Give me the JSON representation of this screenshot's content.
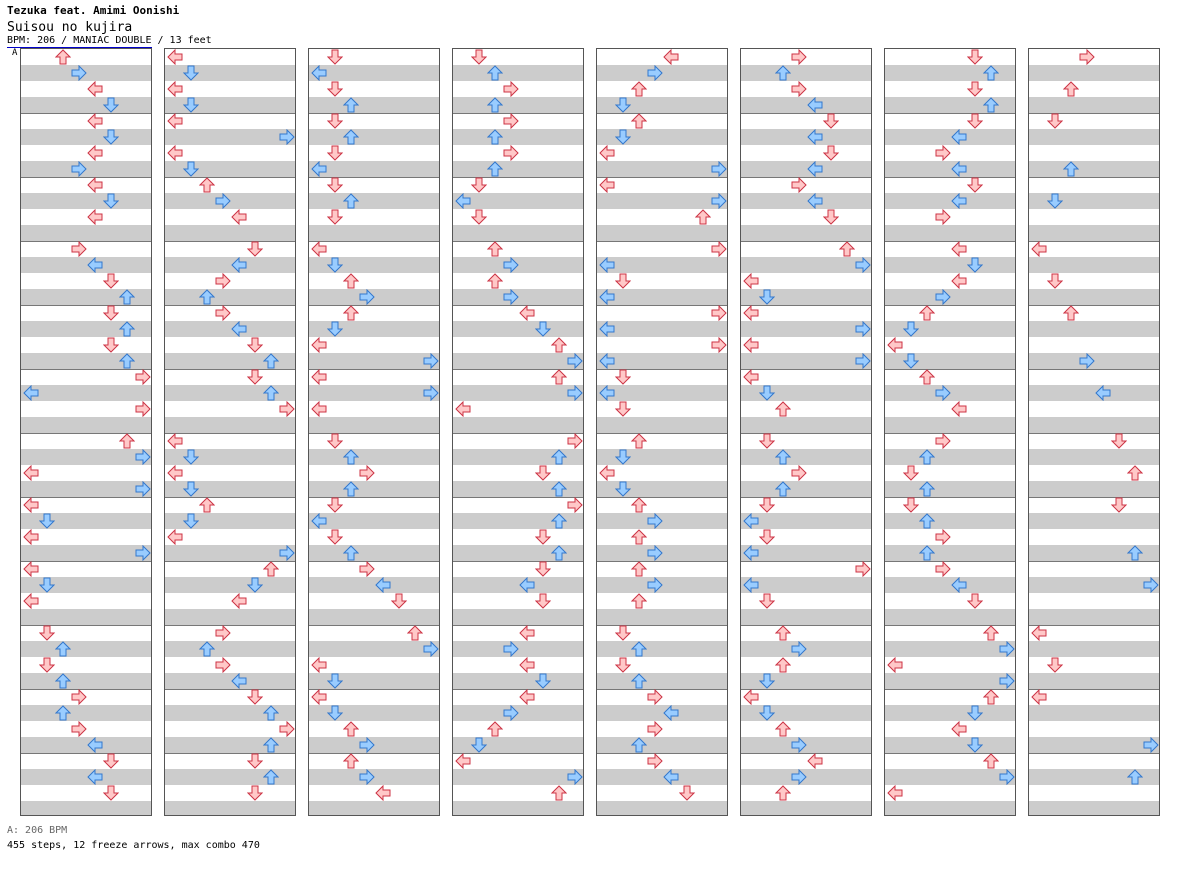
{
  "header": {
    "artist": "Tezuka feat. Amimi Oonishi",
    "title": "Suisou no kujira",
    "chart_info": "BPM: 206 / MANIAC DOUBLE / 13 feet",
    "section_marker": "A"
  },
  "footer": {
    "bpm_line": "A: 206 BPM",
    "stats_line": "455 steps, 12 freeze arrows, max combo 470"
  },
  "colors": {
    "red_fill": "#ffc8c8",
    "red_stroke": "#cc3344",
    "blue_fill": "#99ccff",
    "blue_stroke": "#3377cc",
    "freeze_fill": "#c8ffc8",
    "freeze_stroke": "#339933",
    "stripe_gray": "#cccccc"
  },
  "notes": [
    [
      "A",
      1,
      13.5,
      "red"
    ],
    [
      "A",
      1,
      14,
      "blue"
    ],
    [
      "A",
      2,
      13.5,
      "red"
    ],
    [
      "A",
      2,
      14,
      "red"
    ],
    [
      "A",
      3,
      14.5,
      "red"
    ],
    [
      "A",
      4,
      15,
      "red"
    ],
    [
      "A",
      2,
      15.5,
      "blue"
    ],
    [
      "A",
      2,
      16,
      "blue"
    ],
    [
      "A",
      3,
      16.5,
      "red"
    ],
    [
      "A",
      3,
      17,
      "red"
    ],
    [
      "A",
      2,
      17,
      "red"
    ],
    [
      "A",
      3,
      17.5,
      "blue"
    ],
    [
      "A",
      4,
      17.5,
      "blue"
    ],
    [
      "A",
      4,
      18,
      "blue"
    ],
    [
      "A",
      2,
      18.5,
      "red"
    ],
    [
      "A",
      3,
      18.5,
      "blue"
    ],
    [
      "A",
      1,
      19,
      "red"
    ],
    [
      "A",
      2,
      19,
      "blue"
    ],
    [
      "A",
      1,
      19.5,
      "red"
    ],
    [
      "A",
      0,
      20,
      "red"
    ],
    [
      "A",
      1,
      20.5,
      "red"
    ],
    [
      "A",
      0,
      20.5,
      "blue"
    ],
    [
      "A",
      1,
      21,
      "blue"
    ],
    [
      "A",
      0,
      21,
      "red"
    ],
    [
      "A",
      1,
      21.5,
      "blue"
    ],
    [
      "A",
      0,
      21.5,
      "red"
    ],
    [
      "A",
      0,
      22,
      "red"
    ],
    [
      "A",
      1,
      22,
      "blue"
    ],
    [
      "A",
      1,
      22.5,
      "red"
    ],
    [
      "A",
      2,
      22.5,
      "blue"
    ],
    [
      "A",
      0,
      22.5,
      "red"
    ],
    [
      "A",
      1,
      23,
      "red"
    ],
    [
      "A",
      2,
      23,
      "red"
    ],
    [
      "A",
      1,
      23.5,
      "red"
    ],
    [
      "A",
      2,
      23.5,
      "red"
    ],
    [
      "A",
      2,
      23.5,
      "red"
    ],
    [
      "A",
      0,
      23,
      "blue"
    ],
    [
      "A",
      0,
      23.5,
      "blue"
    ],
    [
      "A",
      1,
      24,
      "red"
    ],
    [
      "A",
      2,
      24,
      "blue"
    ],
    [
      "A",
      2,
      24.5,
      "blue"
    ],
    [
      "A",
      3,
      24.5,
      "red"
    ],
    [
      "A",
      2,
      25,
      "blue"
    ],
    [
      "A",
      2,
      25,
      "red"
    ],
    [
      "A",
      2,
      25.5,
      "red"
    ],
    [
      "A",
      3,
      25.5,
      "blue"
    ],
    [
      "A",
      0,
      25.5,
      "red"
    ],
    [
      "A",
      6,
      0,
      "red"
    ],
    [
      "A",
      5,
      0.5,
      "blue"
    ],
    [
      "A",
      6,
      0.5,
      "red"
    ],
    [
      "A",
      6,
      1,
      "red"
    ],
    [
      "A",
      6,
      1.5,
      "blue"
    ],
    [
      "A",
      7,
      1.5,
      "red"
    ],
    [
      "A",
      7,
      2,
      "blue"
    ],
    [
      "A",
      5,
      2.5,
      "blue"
    ],
    [
      "A",
      6,
      2.5,
      "blue"
    ],
    [
      "A",
      7,
      3,
      "red"
    ],
    [
      "A",
      6,
      3,
      "blue"
    ],
    [
      "A",
      6,
      3.5,
      "red"
    ],
    [
      "A",
      7,
      3.5,
      "blue"
    ],
    [
      "A",
      7,
      4,
      "red"
    ],
    [
      "A",
      6,
      4.5,
      "red"
    ],
    [
      "A",
      7,
      4.5,
      "blue"
    ],
    [
      "A",
      6,
      5,
      "red"
    ],
    [
      "A",
      5,
      5.5,
      "red"
    ],
    [
      "A",
      6,
      5.5,
      "blue"
    ],
    [
      "A",
      4,
      6,
      "red"
    ],
    [
      "A",
      3,
      6.5,
      "red"
    ],
    [
      "A",
      4,
      7,
      "red"
    ],
    [
      "A",
      5,
      7.5,
      "red"
    ],
    [
      "A",
      5,
      8,
      "red"
    ],
    [
      "A",
      5,
      8.5,
      "red"
    ],
    [
      "A",
      4,
      8.5,
      "blue"
    ],
    [
      "A",
      4,
      9,
      "red"
    ],
    [
      "A",
      3,
      9.5,
      "red"
    ],
    [
      "A",
      2,
      10,
      "blue"
    ],
    [
      "A",
      4,
      10.5,
      "blue"
    ],
    [
      "A",
      3,
      11,
      "blue"
    ],
    [
      "A",
      2,
      11,
      "blue"
    ],
    [
      "A",
      3,
      11.5,
      "blue"
    ],
    [
      "A",
      2,
      11.5,
      "blue"
    ],
    [
      "A",
      2,
      12,
      "red"
    ],
    [
      "A",
      3,
      12.5,
      "red"
    ],
    [
      "A",
      2,
      13,
      "red"
    ],
    [
      "A",
      3,
      13.5,
      "red"
    ],
    [
      "A",
      5,
      14,
      "red"
    ],
    [
      "A",
      6,
      14.5,
      "red"
    ],
    [
      "A",
      5,
      15,
      "red"
    ],
    [
      "A",
      6,
      15.5,
      "red"
    ],
    [
      "A",
      7,
      16,
      "red"
    ],
    [
      "A",
      8,
      16.5,
      "red"
    ],
    [
      "A",
      7,
      17,
      "red"
    ],
    [
      "A",
      8,
      17.5,
      "red"
    ],
    [
      "A",
      6,
      18,
      "red"
    ],
    [
      "A",
      7,
      18.5,
      "red"
    ],
    [
      "A",
      6,
      19,
      "red"
    ],
    [
      "A",
      7,
      19.5,
      "red"
    ],
    [
      "A",
      6,
      20,
      "red"
    ],
    [
      "A",
      6,
      20.5,
      "red"
    ],
    [
      "A",
      6,
      21,
      "red"
    ],
    [
      "A",
      6,
      21.5,
      "red"
    ],
    [
      "A",
      6,
      22,
      "red"
    ],
    [
      "A",
      6,
      22.5,
      "red"
    ],
    [
      "A",
      6,
      23,
      "red"
    ],
    [
      "A",
      6,
      23.5,
      "red"
    ]
  ],
  "freezes": [],
  "chart_data": {
    "type": "table",
    "bpm": 206,
    "difficulty": "MANIAC DOUBLE",
    "feet": 13,
    "steps": 455,
    "freeze_arrows": 12,
    "max_combo": 470
  }
}
